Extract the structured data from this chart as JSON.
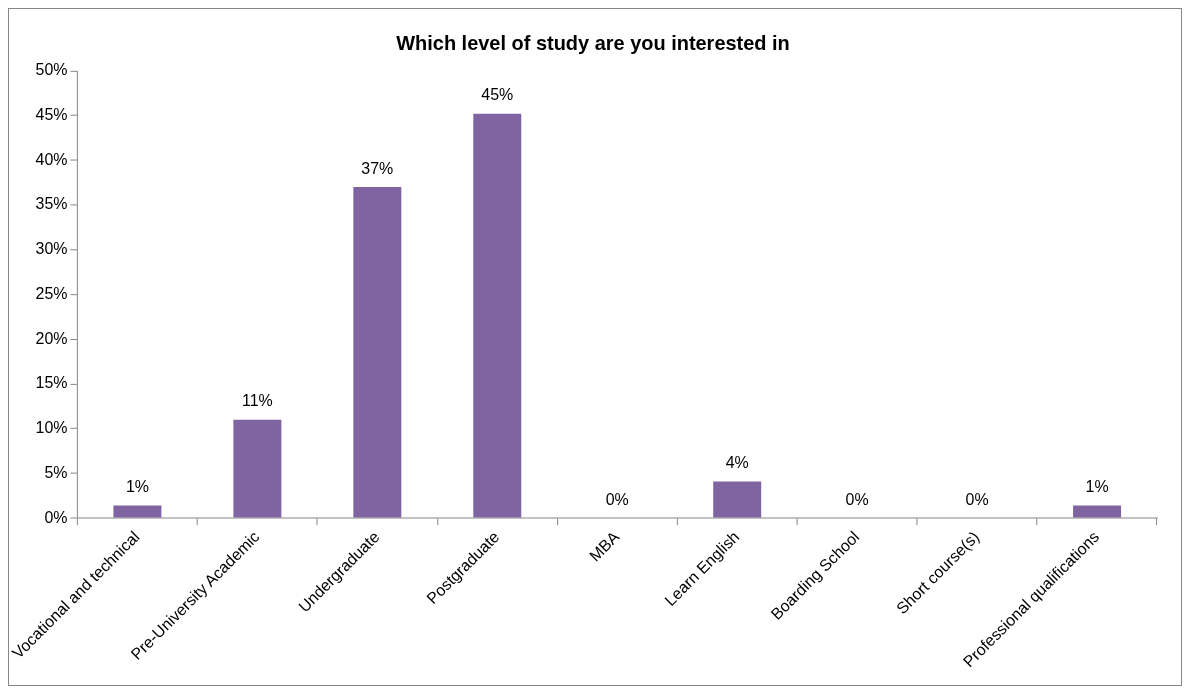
{
  "chart_data": {
    "type": "bar",
    "title": "Which level of study are you interested in",
    "categories": [
      "Vocational and technical",
      "Pre-University Academic",
      "Undergraduate",
      "Postgraduate",
      "MBA",
      "Learn English",
      "Boarding School",
      "Short course(s)",
      "Professional qualifications"
    ],
    "values": [
      1.4,
      11,
      37,
      45.2,
      0,
      4.1,
      0,
      0,
      1.4
    ],
    "value_labels": [
      "1%",
      "11%",
      "37%",
      "45%",
      "0%",
      "4%",
      "0%",
      "0%",
      "1%"
    ],
    "color": "#8064a2",
    "ylim": [
      0,
      50
    ],
    "yticks": [
      {
        "value": 0,
        "label": "0%"
      },
      {
        "value": 5,
        "label": "5%"
      },
      {
        "value": 10,
        "label": "10%"
      },
      {
        "value": 15,
        "label": "15%"
      },
      {
        "value": 20,
        "label": "20%"
      },
      {
        "value": 25,
        "label": "25%"
      },
      {
        "value": 30,
        "label": "30%"
      },
      {
        "value": 35,
        "label": "35%"
      },
      {
        "value": 40,
        "label": "40%"
      },
      {
        "value": 45,
        "label": "45%"
      },
      {
        "value": 50,
        "label": "50%"
      }
    ]
  }
}
